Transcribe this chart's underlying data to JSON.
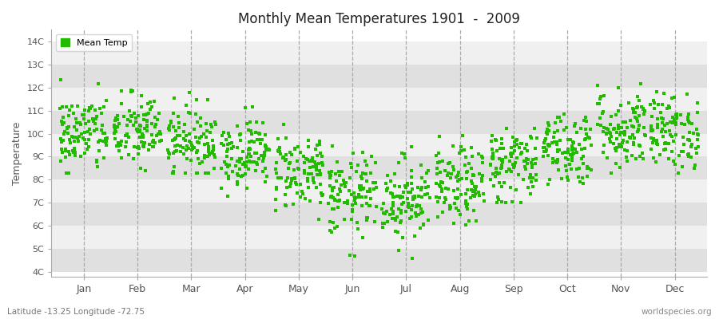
{
  "title": "Monthly Mean Temperatures 1901  -  2009",
  "ylabel": "Temperature",
  "xlabel_labels": [
    "Jan",
    "Feb",
    "Mar",
    "Apr",
    "May",
    "Jun",
    "Jul",
    "Aug",
    "Sep",
    "Oct",
    "Nov",
    "Dec"
  ],
  "ytick_labels": [
    "4C",
    "5C",
    "6C",
    "7C",
    "8C",
    "9C",
    "10C",
    "11C",
    "12C",
    "13C",
    "14C"
  ],
  "ytick_values": [
    4,
    5,
    6,
    7,
    8,
    9,
    10,
    11,
    12,
    13,
    14
  ],
  "ylim": [
    3.8,
    14.5
  ],
  "xlim": [
    -0.6,
    11.6
  ],
  "dot_color": "#22BB00",
  "dot_size": 6,
  "fig_bg_color": "#FFFFFF",
  "plot_bg_color": "#FFFFFF",
  "band_color_light": "#F0F0F0",
  "band_color_dark": "#E0E0E0",
  "dashed_line_color": "#AAAAAA",
  "legend_label": "Mean Temp",
  "subtitle": "Latitude -13.25 Longitude -72.75",
  "watermark": "worldspecies.org",
  "monthly_means": [
    10.0,
    10.1,
    9.7,
    9.2,
    8.4,
    7.3,
    7.2,
    7.7,
    8.7,
    9.4,
    10.2,
    10.1
  ],
  "monthly_stds": [
    0.85,
    0.82,
    0.75,
    0.75,
    0.85,
    0.9,
    0.9,
    0.85,
    0.85,
    0.82,
    0.9,
    0.82
  ],
  "monthly_mins": [
    8.3,
    8.4,
    8.3,
    7.3,
    6.3,
    4.2,
    4.0,
    5.3,
    7.0,
    7.8,
    8.3,
    8.3
  ],
  "monthly_maxs": [
    12.9,
    12.8,
    12.4,
    12.1,
    11.6,
    10.6,
    10.1,
    10.6,
    12.3,
    12.6,
    13.5,
    12.6
  ],
  "n_years": 109,
  "seed": 42
}
